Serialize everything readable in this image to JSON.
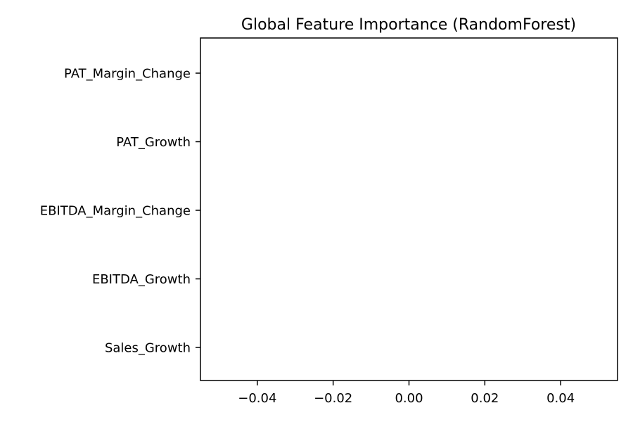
{
  "chart_data": {
    "type": "bar",
    "orientation": "horizontal",
    "title": "Global Feature Importance (RandomForest)",
    "xlabel": "",
    "ylabel": "",
    "categories": [
      "PAT_Margin_Change",
      "PAT_Growth",
      "EBITDA_Margin_Change",
      "EBITDA_Growth",
      "Sales_Growth"
    ],
    "values": [
      0,
      0,
      0,
      0,
      0
    ],
    "xlim": [
      -0.055,
      0.055
    ],
    "xticks": [
      -0.04,
      -0.02,
      0.0,
      0.02,
      0.04
    ],
    "xtick_labels": [
      "−0.04",
      "−0.02",
      "0.00",
      "0.02",
      "0.04"
    ],
    "grid": false,
    "legend": "none"
  }
}
